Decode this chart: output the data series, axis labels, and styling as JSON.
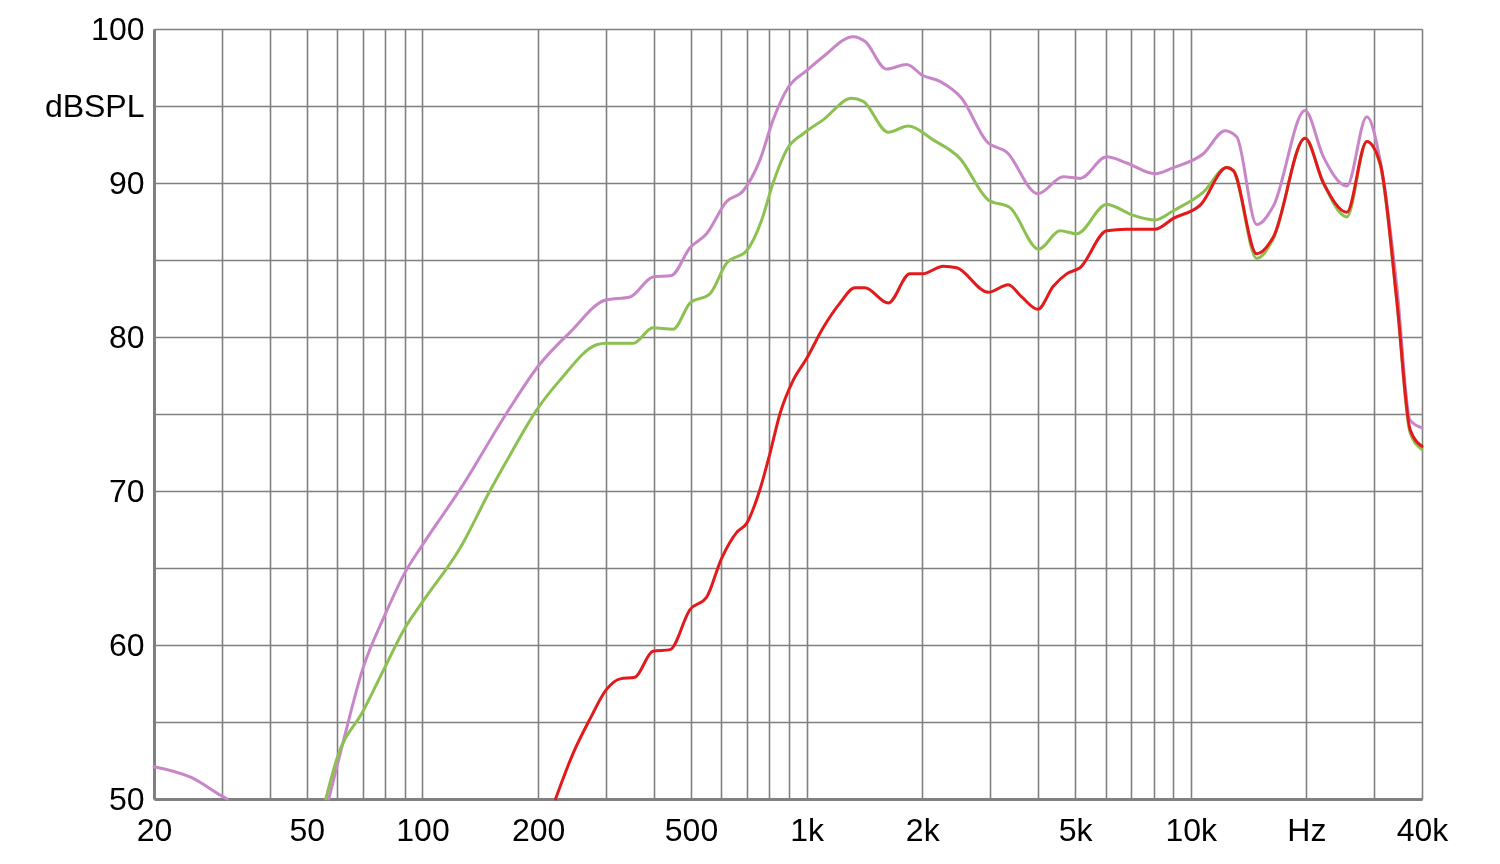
{
  "chart_data": {
    "type": "line",
    "log": "x",
    "xlim": [
      20,
      40000
    ],
    "ylim": [
      50,
      100
    ],
    "grid": true,
    "line_style": "solid",
    "xticks": [
      20,
      {
        "value": 30,
        "label": null
      },
      {
        "value": 40,
        "label": null
      },
      50,
      {
        "value": 60,
        "label": null
      },
      {
        "value": 70,
        "label": null
      },
      {
        "value": 80,
        "label": null
      },
      {
        "value": 90,
        "label": null
      },
      100,
      200,
      {
        "value": 300,
        "label": null
      },
      {
        "value": 400,
        "label": null
      },
      500,
      {
        "value": 600,
        "label": null
      },
      {
        "value": 700,
        "label": null
      },
      {
        "value": 800,
        "label": null
      },
      {
        "value": 900,
        "label": null
      },
      {
        "value": 1000,
        "label": "1k"
      },
      {
        "value": 2000,
        "label": "2k"
      },
      {
        "value": 3000,
        "label": null
      },
      {
        "value": 4000,
        "label": null
      },
      {
        "value": 5000,
        "label": "5k"
      },
      {
        "value": 6000,
        "label": null
      },
      {
        "value": 7000,
        "label": null
      },
      {
        "value": 8000,
        "label": null
      },
      {
        "value": 9000,
        "label": null
      },
      {
        "value": 10000,
        "label": "10k"
      },
      {
        "value": 20000,
        "label": "Hz"
      },
      {
        "value": 30000,
        "label": null
      },
      {
        "value": 40000,
        "label": "40k"
      }
    ],
    "yticks": [
      50,
      {
        "value": 55,
        "label": null
      },
      60,
      {
        "value": 65,
        "label": null
      },
      70,
      {
        "value": 75,
        "label": null
      },
      80,
      {
        "value": 85,
        "label": null
      },
      90,
      {
        "value": 95,
        "label": "dBSPL"
      },
      100
    ],
    "series": [
      {
        "color": "#c886c8",
        "x": [
          20,
          25,
          30,
          31,
          40,
          57,
          62,
          70,
          80,
          90,
          100,
          126,
          166,
          200,
          242,
          300,
          347,
          398,
          445,
          497,
          549,
          619,
          684,
          756,
          818,
          895,
          1000,
          1104,
          1322,
          1418,
          1615,
          1822,
          2000,
          2223,
          2533,
          2944,
          3318,
          4000,
          4658,
          5150,
          6040,
          6810,
          8073,
          9007,
          10785,
          12283,
          13172,
          14850,
          16410,
          19840,
          22150,
          25490,
          28730,
          31110,
          34390,
          37240,
          40000
        ],
        "values": [
          52.1,
          51.4,
          50.2,
          50,
          null,
          50,
          53.6,
          58.5,
          62.0,
          64.7,
          66.5,
          70.2,
          75.1,
          78.1,
          80.3,
          82.4,
          82.6,
          83.9,
          84.0,
          85.8,
          86.7,
          88.8,
          89.5,
          91.5,
          94.1,
          96.2,
          97.3,
          98.2,
          99.5,
          99.2,
          97.4,
          97.7,
          97.0,
          96.6,
          95.5,
          92.7,
          92.0,
          89.3,
          90.4,
          90.3,
          91.7,
          91.3,
          90.6,
          91.0,
          91.9,
          93.4,
          93.0,
          87.3,
          88.5,
          94.7,
          91.7,
          89.8,
          94.3,
          91.5,
          83.3,
          74.6,
          74.1
        ]
      },
      {
        "color": "#8cc152",
        "x": [
          56,
          60,
          70,
          80,
          90,
          100,
          126,
          149,
          166,
          200,
          228,
          284,
          300,
          354,
          398,
          449,
          497,
          560,
          619,
          698,
          764,
          818,
          895,
          980,
          1104,
          1310,
          1404,
          1631,
          1839,
          2135,
          2506,
          2971,
          3384,
          4020,
          4566,
          5050,
          6040,
          7090,
          8073,
          9007,
          10785,
          12400,
          12910,
          14850,
          16410,
          19840,
          22150,
          25490,
          28730,
          31110,
          34390,
          37240,
          40000
        ],
        "values": [
          50,
          52.7,
          55.7,
          58.6,
          61.1,
          62.8,
          66.4,
          69.9,
          72.0,
          75.4,
          77.2,
          79.5,
          79.6,
          79.6,
          80.6,
          80.5,
          82.2,
          82.8,
          84.8,
          85.6,
          87.6,
          90.0,
          92.3,
          93.2,
          94.1,
          95.5,
          95.3,
          93.3,
          93.7,
          92.8,
          91.6,
          88.9,
          88.4,
          85.7,
          86.9,
          86.7,
          88.6,
          87.9,
          87.6,
          88.2,
          89.4,
          91.0,
          90.8,
          85.1,
          86.4,
          92.9,
          90.0,
          87.8,
          92.7,
          91.2,
          82.3,
          73.8,
          72.7
        ]
      },
      {
        "color": "#e31a1c",
        "x": [
          222,
          247,
          273,
          301,
          327,
          357,
          398,
          441,
          497,
          549,
          600,
          657,
          698,
          756,
          802,
          852,
          923,
          1000,
          1104,
          1221,
          1336,
          1418,
          1631,
          1858,
          2002,
          2269,
          2458,
          2971,
          3350,
          3630,
          4000,
          4387,
          4753,
          5150,
          6040,
          6810,
          8073,
          9007,
          10620,
          12400,
          12910,
          14850,
          16410,
          19840,
          22150,
          25490,
          28730,
          31110,
          34390,
          37240,
          40000
        ],
        "values": [
          50,
          53.0,
          55.2,
          57.1,
          57.8,
          57.9,
          59.6,
          59.7,
          62.3,
          63.1,
          65.6,
          67.3,
          67.9,
          70.1,
          72.4,
          75.0,
          77.2,
          78.6,
          80.6,
          82.2,
          83.2,
          83.2,
          82.2,
          84.1,
          84.1,
          84.6,
          84.5,
          82.9,
          83.4,
          82.6,
          81.8,
          83.3,
          84.1,
          84.5,
          86.9,
          87.0,
          87.0,
          87.7,
          88.6,
          91.0,
          90.8,
          85.4,
          86.5,
          92.9,
          90.0,
          88.1,
          92.7,
          91.3,
          82.4,
          74.0,
          72.9
        ]
      }
    ]
  }
}
